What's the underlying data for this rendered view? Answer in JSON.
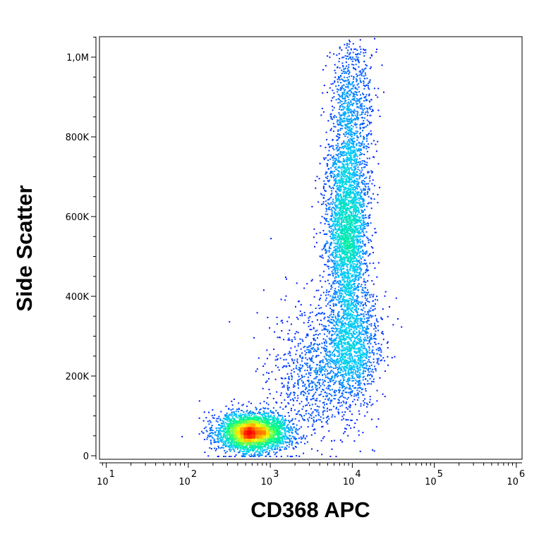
{
  "chart_data": {
    "type": "scatter",
    "title": "",
    "xlabel": "CD368 APC",
    "ylabel": "Side Scatter",
    "x_scale": "log",
    "xlim": [
      10,
      1000000
    ],
    "ylim": [
      0,
      1050000
    ],
    "x_ticks": [
      {
        "value": 10,
        "base": "10",
        "exp": "1"
      },
      {
        "value": 100,
        "base": "10",
        "exp": "2"
      },
      {
        "value": 1000,
        "base": "10",
        "exp": "3"
      },
      {
        "value": 10000,
        "base": "10",
        "exp": "4"
      },
      {
        "value": 100000,
        "base": "10",
        "exp": "5"
      },
      {
        "value": 1000000,
        "base": "10",
        "exp": "6"
      }
    ],
    "y_ticks": [
      {
        "value": 0,
        "label": "0"
      },
      {
        "value": 200000,
        "label": "200K"
      },
      {
        "value": 400000,
        "label": "400K"
      },
      {
        "value": 600000,
        "label": "600K"
      },
      {
        "value": 800000,
        "label": "800K"
      },
      {
        "value": 1000000,
        "label": "1,0M"
      }
    ],
    "grid": false,
    "legend": "none",
    "color_scale": [
      "#0000ff",
      "#00c8ff",
      "#00ff80",
      "#ffff00",
      "#ff0000"
    ],
    "populations": [
      {
        "x_center": 600,
        "y_center": 60000,
        "x_spread_decades": 0.22,
        "y_spread": 25000,
        "weight": 0.35
      },
      {
        "x_center": 8500,
        "y_center": 580000,
        "x_spread_decades": 0.13,
        "y_spread": 130000,
        "weight": 0.33
      },
      {
        "x_center": 9500,
        "y_center": 280000,
        "x_spread_decades": 0.18,
        "y_spread": 70000,
        "weight": 0.14
      },
      {
        "x_center": 3500,
        "y_center": 200000,
        "x_spread_decades": 0.3,
        "y_spread": 90000,
        "weight": 0.1
      },
      {
        "x_center": 10000,
        "y_center": 900000,
        "x_spread_decades": 0.13,
        "y_spread": 90000,
        "weight": 0.08
      }
    ]
  }
}
